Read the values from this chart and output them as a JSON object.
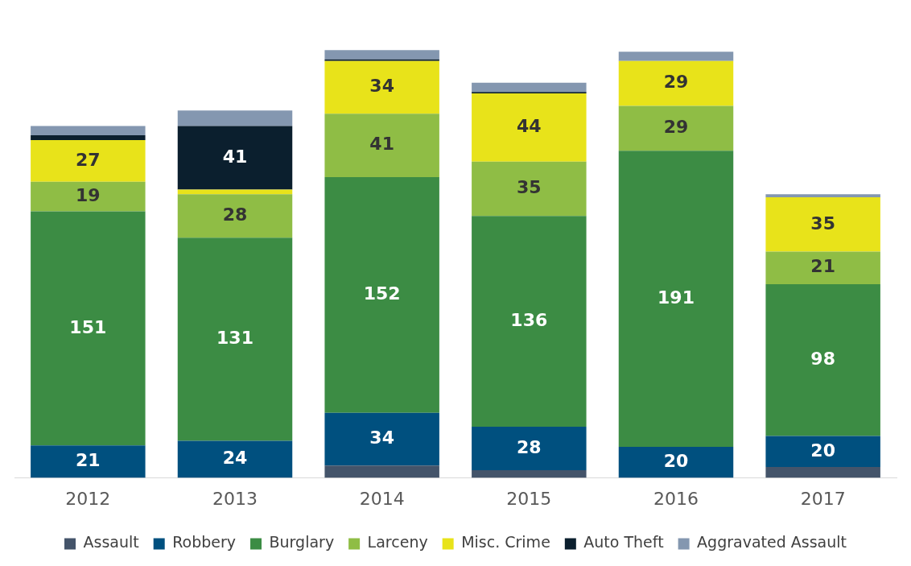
{
  "chart_data": {
    "type": "bar",
    "stacked": true,
    "legend": "bottom",
    "grid": false,
    "categories": [
      "2012",
      "2013",
      "2014",
      "2015",
      "2016",
      "2017"
    ],
    "series": [
      {
        "name": "Assault",
        "color": "#44546a",
        "values": [
          0,
          0,
          8,
          5,
          0,
          7
        ],
        "value_labels": [
          null,
          null,
          null,
          null,
          null,
          null
        ]
      },
      {
        "name": "Robbery",
        "color": "#00507f",
        "values": [
          21,
          24,
          34,
          28,
          20,
          20
        ],
        "value_labels": [
          "21",
          "24",
          "34",
          "28",
          "20",
          "20"
        ]
      },
      {
        "name": "Burglary",
        "color": "#3c8c44",
        "values": [
          151,
          131,
          152,
          136,
          191,
          98
        ],
        "value_labels": [
          "151",
          "131",
          "152",
          "136",
          "191",
          "98"
        ]
      },
      {
        "name": "Larceny",
        "color": "#8fbd45",
        "values": [
          19,
          28,
          41,
          35,
          29,
          21
        ],
        "value_labels": [
          "19",
          "28",
          "41",
          "35",
          "29",
          "21"
        ]
      },
      {
        "name": "Misc. Crime",
        "color": "#e8e31a",
        "values": [
          27,
          3,
          34,
          44,
          29,
          35
        ],
        "value_labels": [
          "27",
          null,
          "34",
          "44",
          "29",
          "35"
        ]
      },
      {
        "name": "Auto Theft",
        "color": "#0b1f2e",
        "values": [
          3,
          41,
          1,
          1,
          0,
          0
        ],
        "value_labels": [
          null,
          "41",
          null,
          null,
          null,
          null
        ]
      },
      {
        "name": "Aggravated Assault",
        "color": "#8497b0",
        "values": [
          6,
          10,
          6,
          6,
          6,
          2
        ],
        "value_labels": [
          null,
          null,
          null,
          null,
          null,
          null
        ]
      }
    ]
  }
}
